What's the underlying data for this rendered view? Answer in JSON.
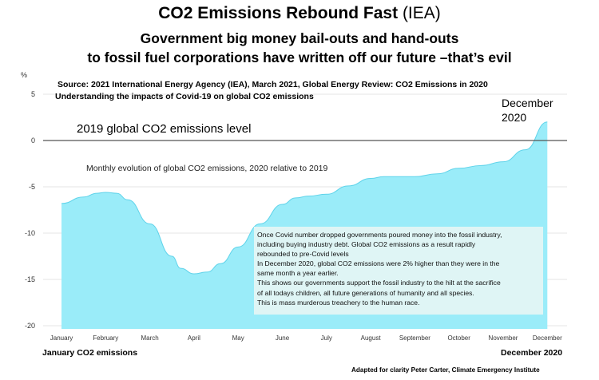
{
  "header": {
    "title_bold": "CO2 Emissions Rebound Fast",
    "title_source": "(IEA)",
    "subtitle_line1": "Government big money bail-outs and hand-outs",
    "subtitle_line2": "to fossil fuel corporations have written off our future –that’s evil"
  },
  "source_line1": "Source: 2021  International Energy Agency (IEA), March 2021, Global Energy Review: CO2 Emissions in 2020",
  "source_line2": "Understanding the impacts of Covid-19 on global CO2 emissions",
  "baseline_label": "2019 global CO2 emissions level",
  "end_label": [
    "December",
    "2020"
  ],
  "footer": {
    "left": "January CO2 emissions",
    "right": "December 2020",
    "credit": "Adapted for clarity Peter Carter, Climate Emergency Institute"
  },
  "note_lines": [
    "Once Covid number dropped governments poured money into the fossil industry,",
    "including buying industry debt.  Global CO2 emissions as a result rapidly",
    "rebounded to pre-Covid levels",
    "In December 2020, global CO2 emissions were 2% higher than they were in the",
    "same month  a year earlier.",
    "This shows our governments support the fossil  industry to the hilt at the sacrifice",
    "of all todays children, all future generations of humanity and all species.",
    "This is mass  murderous treachery to the human race."
  ],
  "colors": {
    "area": "#9aecf9",
    "area_edge": "#5fd3ea",
    "zero_line": "#555555",
    "grid": "#e6e6e6"
  },
  "chart_data": {
    "type": "area",
    "title": "Monthly evolution of global CO2 emissions, 2020 relative to 2019",
    "ylabel": "%",
    "ylim": [
      -20,
      5
    ],
    "yticks": [
      5,
      0,
      -5,
      -10,
      -15,
      -20
    ],
    "grid": true,
    "categories": [
      "January",
      "February",
      "March",
      "April",
      "May",
      "June",
      "July",
      "August",
      "September",
      "October",
      "November",
      "December"
    ],
    "x": [
      0.0,
      0.5,
      0.8,
      1.0,
      1.25,
      1.5,
      2.0,
      2.5,
      2.7,
      3.0,
      3.3,
      3.6,
      4.0,
      4.5,
      5.0,
      5.3,
      5.6,
      6.0,
      6.5,
      7.0,
      7.3,
      7.6,
      8.0,
      8.5,
      9.0,
      9.5,
      10.0,
      10.5,
      11.0
    ],
    "series": [
      {
        "values": [
          -6.8,
          -6.1,
          -5.7,
          -5.6,
          -5.7,
          -6.4,
          -9.0,
          -12.5,
          -13.8,
          -14.4,
          -14.2,
          -13.3,
          -11.5,
          -9.0,
          -6.9,
          -6.2,
          -6.0,
          -5.8,
          -4.9,
          -4.1,
          -3.9,
          -3.9,
          -3.9,
          -3.6,
          -3.0,
          -2.7,
          -2.3,
          -1.0,
          2.0
        ]
      }
    ]
  }
}
